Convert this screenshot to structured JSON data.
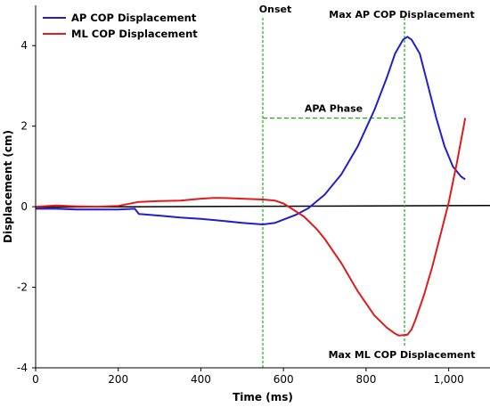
{
  "chart_data": {
    "type": "line",
    "title": "",
    "xlabel": "Time (ms)",
    "ylabel": "Displacement (cm)",
    "xlim": [
      0,
      1100
    ],
    "ylim": [
      -4,
      5
    ],
    "xticks": [
      0,
      200,
      400,
      600,
      800,
      1000
    ],
    "xtick_labels": [
      "0",
      "200",
      "400",
      "600",
      "800",
      "1,000"
    ],
    "yticks": [
      -4,
      -2,
      0,
      2,
      4
    ],
    "ytick_labels": [
      "-4",
      "-2",
      "0",
      "2",
      "4"
    ],
    "grid": false,
    "legend_position": "top-left",
    "zero_line": {
      "x": [
        0,
        1100
      ],
      "y": [
        -0.01,
        0.03
      ],
      "color": "#000000"
    },
    "series": [
      {
        "name": "AP COP Displacement",
        "color": "#1f1fd0",
        "x": [
          0,
          50,
          100,
          150,
          200,
          240,
          250,
          300,
          350,
          400,
          450,
          500,
          550,
          580,
          600,
          630,
          660,
          700,
          740,
          780,
          820,
          850,
          870,
          890,
          900,
          910,
          930,
          950,
          970,
          990,
          1010,
          1030,
          1040
        ],
        "y": [
          -0.05,
          -0.05,
          -0.07,
          -0.07,
          -0.07,
          -0.05,
          -0.18,
          -0.22,
          -0.27,
          -0.3,
          -0.35,
          -0.4,
          -0.44,
          -0.4,
          -0.32,
          -0.2,
          -0.04,
          0.3,
          0.8,
          1.5,
          2.4,
          3.2,
          3.8,
          4.15,
          4.22,
          4.15,
          3.8,
          3.0,
          2.2,
          1.5,
          1.0,
          0.75,
          0.68
        ]
      },
      {
        "name": "ML COP Displacement",
        "color": "#e01b1b",
        "x": [
          0,
          50,
          100,
          150,
          200,
          250,
          300,
          350,
          400,
          430,
          450,
          500,
          550,
          580,
          600,
          620,
          650,
          680,
          700,
          740,
          780,
          820,
          850,
          870,
          880,
          900,
          910,
          920,
          940,
          960,
          980,
          1000,
          1020,
          1040
        ],
        "y": [
          0.0,
          0.03,
          0.01,
          0.0,
          0.02,
          0.12,
          0.14,
          0.15,
          0.2,
          0.22,
          0.22,
          0.2,
          0.18,
          0.15,
          0.08,
          -0.05,
          -0.25,
          -0.55,
          -0.8,
          -1.4,
          -2.1,
          -2.7,
          -3.0,
          -3.15,
          -3.2,
          -3.18,
          -3.05,
          -2.8,
          -2.2,
          -1.5,
          -0.7,
          0.1,
          1.1,
          2.2
        ]
      }
    ],
    "annotations": [
      {
        "id": "onset",
        "text": "Onset",
        "x": 550
      },
      {
        "id": "max_ap",
        "text": "Max AP COP Displacement",
        "x": 893
      },
      {
        "id": "apa_phase",
        "text": "APA Phase",
        "from_x": 550,
        "to_x": 893,
        "y": 2.2
      },
      {
        "id": "max_ml",
        "text": "Max ML COP Displacement",
        "x": 893
      }
    ],
    "guide_color": "#19b219"
  }
}
